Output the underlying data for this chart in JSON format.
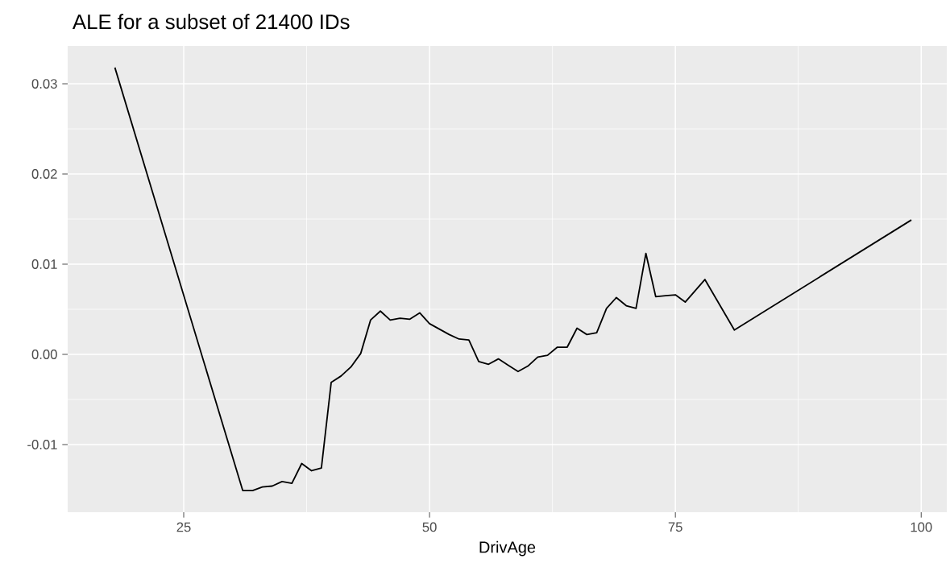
{
  "chart_data": {
    "type": "line",
    "title": "ALE for a subset of 21400 IDs",
    "xlabel": "DrivAge",
    "x": [
      18,
      31,
      32,
      33,
      34,
      35,
      36,
      37,
      38,
      39,
      40,
      41,
      42,
      43,
      44,
      45,
      46,
      47,
      48,
      49,
      50,
      51,
      52,
      53,
      54,
      55,
      56,
      57,
      58,
      59,
      60,
      61,
      62,
      63,
      64,
      65,
      66,
      67,
      68,
      69,
      70,
      71,
      72,
      73,
      74,
      75,
      76,
      78,
      81,
      99
    ],
    "series": [
      {
        "color": "#000000",
        "values": [
          0.0318,
          -0.0151,
          -0.0151,
          -0.0147,
          -0.0146,
          -0.0141,
          -0.0143,
          -0.0121,
          -0.0129,
          -0.0126,
          -0.0031,
          -0.0024,
          -0.0014,
          0.0001,
          0.0038,
          0.0048,
          0.0038,
          0.004,
          0.0039,
          0.0046,
          0.0034,
          0.0028,
          0.0022,
          0.0017,
          0.0016,
          -0.0008,
          -0.0011,
          -0.0005,
          -0.0012,
          -0.0019,
          -0.0013,
          -0.0003,
          -0.0001,
          0.0008,
          0.0008,
          0.0029,
          0.0022,
          0.0024,
          0.0051,
          0.0063,
          0.0054,
          0.0051,
          0.0112,
          0.0064,
          0.0065,
          0.0066,
          0.0058,
          0.0083,
          0.0027,
          0.0149
        ]
      }
    ],
    "xlim": [
      13.2,
      102.6
    ],
    "ylim": [
      -0.0175,
      0.0342
    ],
    "xticks": [
      25,
      50,
      75,
      100
    ],
    "yticks": [
      {
        "value": -0.01,
        "label": "-0.01"
      },
      {
        "value": 0,
        "label": "0.00"
      },
      {
        "value": 0.01,
        "label": "0.01"
      },
      {
        "value": 0.02,
        "label": "0.02"
      },
      {
        "value": 0.03,
        "label": "0.03"
      }
    ],
    "grid": true,
    "marker": "none",
    "line_style": "solid"
  }
}
